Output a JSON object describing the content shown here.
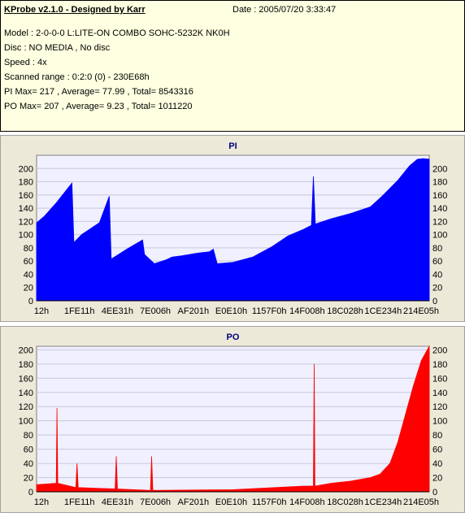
{
  "info": {
    "title": "KProbe v2.1.0 - Designed by Karr",
    "date": "Date : 2005/07/20 3:33:47",
    "model": "Model : 2-0-0-0 L:LITE-ON COMBO SOHC-5232K NK0H",
    "disc": "Disc : NO MEDIA , No disc",
    "speed": "Speed : 4x",
    "range": "Scanned range : 0:2:0 (0) - 230E68h",
    "pi": "PI Max= 217 , Average= 77.99 , Total= 8543316",
    "po": "PO Max= 207 , Average= 9.23 , Total= 1011220"
  },
  "colors": {
    "pi": "#0000ff",
    "po": "#ff0000",
    "plot_bg": "#f0f0ff",
    "grid": "#c8c8dc"
  },
  "chart_data": [
    {
      "type": "area",
      "title": "PI",
      "ylim": [
        0,
        220
      ],
      "yticks": [
        0,
        20,
        40,
        60,
        80,
        100,
        120,
        140,
        160,
        180,
        200
      ],
      "x_tick_labels": [
        "12h",
        "1FE11h",
        "4EE31h",
        "7E006h",
        "AF201h",
        "E0E10h",
        "1157F0h",
        "14F008h",
        "18C028h",
        "1CE234h",
        "214E05h"
      ],
      "x": [
        0,
        0.02,
        0.05,
        0.09,
        0.095,
        0.115,
        0.16,
        0.185,
        0.19,
        0.23,
        0.27,
        0.275,
        0.3,
        0.33,
        0.345,
        0.37,
        0.41,
        0.44,
        0.45,
        0.46,
        0.5,
        0.55,
        0.6,
        0.64,
        0.68,
        0.7,
        0.705,
        0.71,
        0.75,
        0.8,
        0.85,
        0.88,
        0.92,
        0.95,
        0.97,
        0.985,
        1.0
      ],
      "series": [
        {
          "values": [
            118,
            128,
            148,
            178,
            88,
            100,
            118,
            158,
            63,
            78,
            92,
            70,
            56,
            62,
            66,
            68,
            72,
            74,
            78,
            56,
            58,
            66,
            82,
            98,
            108,
            114,
            188,
            116,
            124,
            132,
            142,
            158,
            182,
            204,
            214,
            215,
            214
          ]
        }
      ]
    },
    {
      "type": "area",
      "title": "PO",
      "ylim": [
        0,
        205
      ],
      "yticks": [
        0,
        20,
        40,
        60,
        80,
        100,
        120,
        140,
        160,
        180,
        200
      ],
      "x_tick_labels": [
        "12h",
        "1FE11h",
        "4EE31h",
        "7E006h",
        "AF201h",
        "E0E10h",
        "1157F0h",
        "14F008h",
        "18C028h",
        "1CE234h",
        "214E05h"
      ],
      "x": [
        0,
        0.05,
        0.052,
        0.054,
        0.1,
        0.103,
        0.106,
        0.2,
        0.203,
        0.206,
        0.29,
        0.293,
        0.296,
        0.5,
        0.68,
        0.705,
        0.707,
        0.709,
        0.75,
        0.8,
        0.85,
        0.875,
        0.9,
        0.92,
        0.94,
        0.96,
        0.98,
        1.0
      ],
      "series": [
        {
          "values": [
            10,
            12,
            118,
            12,
            6,
            40,
            6,
            4,
            50,
            4,
            2,
            50,
            2,
            3,
            8,
            8,
            180,
            8,
            12,
            15,
            20,
            25,
            40,
            70,
            110,
            150,
            185,
            205
          ]
        }
      ]
    }
  ]
}
